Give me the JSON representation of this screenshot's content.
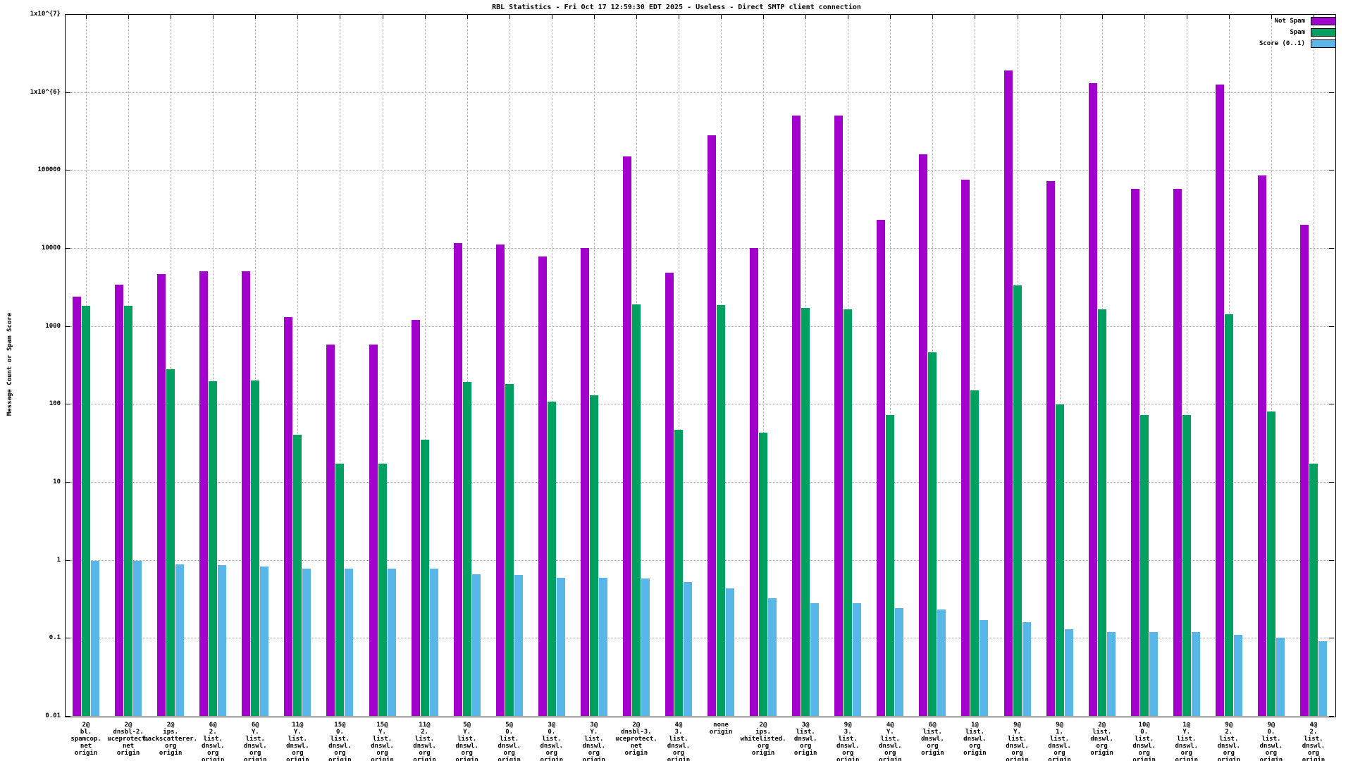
{
  "title": "RBL Statistics - Fri Oct 17 12:59:30 EDT 2025 - Useless - Direct SMTP client connection",
  "y_axis_label": "Message Count or Spam Score",
  "legend_entries": [
    "Not Spam",
    "Spam",
    "Score (0..1)"
  ],
  "colors": {
    "not_spam": "#a100cd",
    "spam": "#00a060",
    "score": "#58b6e8",
    "grid": "#a8a8a8",
    "axis": "#000000"
  },
  "chart_data": {
    "type": "bar",
    "y_scale": "log",
    "ylim": [
      0.01,
      10000000
    ],
    "grid": true,
    "legend_position": "top-right",
    "ytick_labels": [
      "1x10^{7}",
      "1x10^{6}",
      "100000",
      "10000",
      "1000",
      "100",
      "10",
      "1",
      "0.1",
      "0.01"
    ],
    "categories": [
      [
        "2@",
        "bl.",
        "spamcop.",
        "net",
        "origin"
      ],
      [
        "2@",
        "dnsbl-2.",
        "uceprotect.",
        "net",
        "origin"
      ],
      [
        "2@",
        "ips.",
        "backscatterer.",
        "org",
        "origin"
      ],
      [
        "6@",
        "2.",
        "list.",
        "dnswl.",
        "org",
        "origin"
      ],
      [
        "6@",
        "Y.",
        "list.",
        "dnswl.",
        "org",
        "origin"
      ],
      [
        "11@",
        "Y.",
        "list.",
        "dnswl.",
        "org",
        "origin"
      ],
      [
        "15@",
        "0.",
        "list.",
        "dnswl.",
        "org",
        "origin"
      ],
      [
        "15@",
        "Y.",
        "list.",
        "dnswl.",
        "org",
        "origin"
      ],
      [
        "11@",
        "2.",
        "list.",
        "dnswl.",
        "org",
        "origin"
      ],
      [
        "5@",
        "Y.",
        "list.",
        "dnswl.",
        "org",
        "origin"
      ],
      [
        "5@",
        "0.",
        "list.",
        "dnswl.",
        "org",
        "origin"
      ],
      [
        "3@",
        "0.",
        "list.",
        "dnswl.",
        "org",
        "origin"
      ],
      [
        "3@",
        "Y.",
        "list.",
        "dnswl.",
        "org",
        "origin"
      ],
      [
        "2@",
        "dnsbl-3.",
        "uceprotect.",
        "net",
        "origin"
      ],
      [
        "4@",
        "3.",
        "list.",
        "dnswl.",
        "org",
        "origin"
      ],
      [
        "none",
        "origin"
      ],
      [
        "2@",
        "ips.",
        "whitelisted.",
        "org",
        "origin"
      ],
      [
        "3@",
        "list.",
        "dnswl.",
        "org",
        "origin"
      ],
      [
        "9@",
        "3.",
        "list.",
        "dnswl.",
        "org",
        "origin"
      ],
      [
        "4@",
        "Y.",
        "list.",
        "dnswl.",
        "org",
        "origin"
      ],
      [
        "6@",
        "list.",
        "dnswl.",
        "org",
        "origin"
      ],
      [
        "1@",
        "list.",
        "dnswl.",
        "org",
        "origin"
      ],
      [
        "9@",
        "Y.",
        "list.",
        "dnswl.",
        "org",
        "origin"
      ],
      [
        "9@",
        "1.",
        "list.",
        "dnswl.",
        "org",
        "origin"
      ],
      [
        "2@",
        "list.",
        "dnswl.",
        "org",
        "origin"
      ],
      [
        "10@",
        "0.",
        "list.",
        "dnswl.",
        "org",
        "origin"
      ],
      [
        "1@",
        "Y.",
        "list.",
        "dnswl.",
        "org",
        "origin"
      ],
      [
        "9@",
        "2.",
        "list.",
        "dnswl.",
        "org",
        "origin"
      ],
      [
        "9@",
        "0.",
        "list.",
        "dnswl.",
        "org",
        "origin"
      ],
      [
        "4@",
        "2.",
        "list.",
        "dnswl.",
        "org",
        "origin"
      ]
    ],
    "series": [
      {
        "name": "Not Spam",
        "color": "#a100cd",
        "values": [
          2400,
          3400,
          4600,
          5000,
          5000,
          1300,
          580,
          580,
          1200,
          11500,
          11000,
          7800,
          10000,
          150000,
          4800,
          280000,
          10000,
          500000,
          500000,
          23000,
          160000,
          75000,
          1900000,
          72000,
          1300000,
          57000,
          57000,
          1250000,
          85000,
          20000
        ]
      },
      {
        "name": "Spam",
        "color": "#00a060",
        "values": [
          1800,
          1800,
          280,
          195,
          200,
          40,
          17,
          17,
          35,
          190,
          180,
          108,
          130,
          1900,
          47,
          1850,
          43,
          1700,
          1650,
          72,
          460,
          150,
          3300,
          98,
          1650,
          72,
          72,
          1400,
          80,
          17
        ]
      },
      {
        "name": "Score (0..1)",
        "color": "#58b6e8",
        "values": [
          0.98,
          0.97,
          0.88,
          0.85,
          0.83,
          0.78,
          0.77,
          0.78,
          0.77,
          0.65,
          0.64,
          0.59,
          0.59,
          0.58,
          0.52,
          0.43,
          0.32,
          0.28,
          0.28,
          0.24,
          0.23,
          0.17,
          0.16,
          0.13,
          0.12,
          0.12,
          0.12,
          0.11,
          0.1,
          0.09
        ]
      }
    ]
  }
}
